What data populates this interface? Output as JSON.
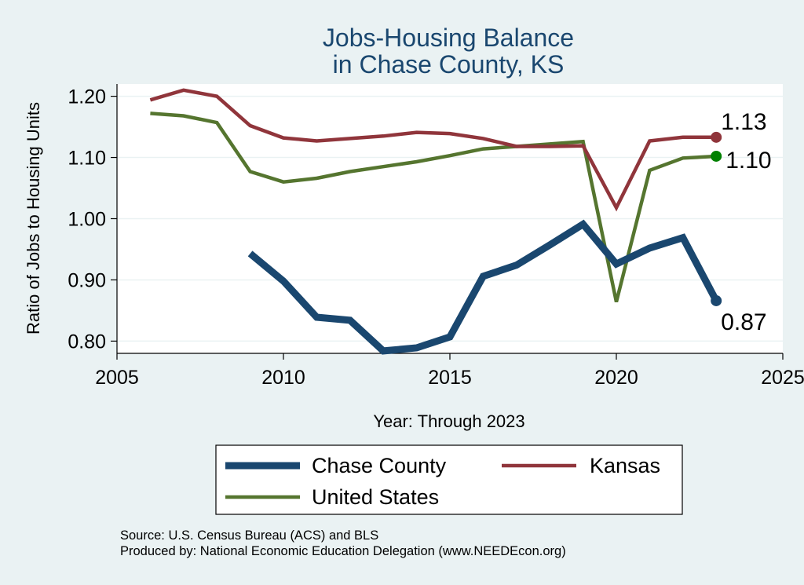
{
  "chart_data": {
    "type": "line",
    "title_lines": [
      "Jobs-Housing Balance",
      "in Chase County, KS"
    ],
    "xlabel": "Year: Through 2023",
    "ylabel": "Ratio of Jobs to Housing Units",
    "xlim": [
      2005,
      2025
    ],
    "ylim": [
      0.78,
      1.22
    ],
    "x_ticks": [
      2005,
      2010,
      2015,
      2020,
      2025
    ],
    "x_tick_labels": [
      "2005",
      "2010",
      "2015",
      "2020",
      "2025"
    ],
    "y_ticks": [
      0.8,
      0.9,
      1.0,
      1.1,
      1.2
    ],
    "y_tick_labels": [
      "0.80",
      "0.90",
      "1.00",
      "1.10",
      "1.20"
    ],
    "grid": true,
    "legend_position": "bottom",
    "series": [
      {
        "name": "Chase County",
        "color": "#1a476f",
        "x": [
          2009,
          2010,
          2011,
          2012,
          2013,
          2014,
          2015,
          2016,
          2017,
          2018,
          2019,
          2020,
          2021,
          2022,
          2023
        ],
        "values": [
          0.943,
          0.898,
          0.839,
          0.834,
          0.784,
          0.789,
          0.807,
          0.906,
          0.924,
          0.957,
          0.991,
          0.926,
          0.952,
          0.969,
          0.866
        ],
        "end_label": "0.87"
      },
      {
        "name": "Kansas",
        "color": "#90353b",
        "x": [
          2006,
          2007,
          2008,
          2009,
          2010,
          2011,
          2012,
          2013,
          2014,
          2015,
          2016,
          2017,
          2018,
          2019,
          2020,
          2021,
          2022,
          2023
        ],
        "values": [
          1.194,
          1.21,
          1.2,
          1.152,
          1.132,
          1.127,
          1.131,
          1.135,
          1.141,
          1.139,
          1.131,
          1.118,
          1.118,
          1.119,
          1.018,
          1.127,
          1.133,
          1.133
        ],
        "end_label": "1.13"
      },
      {
        "name": "United States",
        "color": "#55752f",
        "x": [
          2006,
          2007,
          2008,
          2009,
          2010,
          2011,
          2012,
          2013,
          2014,
          2015,
          2016,
          2017,
          2018,
          2019,
          2020,
          2021,
          2022,
          2023
        ],
        "values": [
          1.172,
          1.168,
          1.157,
          1.077,
          1.06,
          1.066,
          1.077,
          1.085,
          1.093,
          1.103,
          1.114,
          1.118,
          1.122,
          1.126,
          0.864,
          1.079,
          1.099,
          1.102
        ],
        "end_label": "1.10"
      }
    ],
    "end_marker_colors": [
      "#1a476f",
      "#90353b",
      "#008000"
    ],
    "source_lines": [
      "Source: U.S. Census Bureau (ACS) and BLS",
      "Produced by: National Economic Education Delegation (www.NEEDEcon.org)"
    ]
  }
}
